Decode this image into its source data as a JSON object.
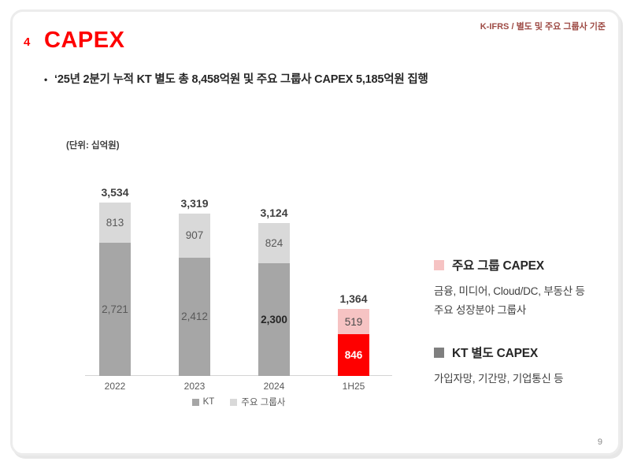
{
  "colors": {
    "accent_red": "#fe0000",
    "note_red": "#9e4b45",
    "kt_gray": "#a6a6a6",
    "group_light_gray": "#d9d9d9",
    "group_pink": "#f6c3c3",
    "panel_kt_marker": "#7f7f7f"
  },
  "header": {
    "section_number": "4",
    "title": "CAPEX",
    "note": "K-IFRS / 별도 및 주요 그룹사 기준"
  },
  "bullet": {
    "marker": "•",
    "text": "‘25년 2분기 누적 KT 별도 총 8,458억원 및 주요 그룹사 CAPEX 5,185억원 집행"
  },
  "unit_label": "(단위: 십억원)",
  "chart_data": {
    "type": "bar",
    "stacked": true,
    "title": "",
    "xlabel": "",
    "ylabel": "",
    "unit": "십억원",
    "grid": false,
    "legend_position": "bottom",
    "categories": [
      "2022",
      "2023",
      "2024",
      "1H25"
    ],
    "series": [
      {
        "name": "KT",
        "values": [
          2721,
          2412,
          2300,
          846
        ],
        "labels": [
          "2,721",
          "2,412",
          "2,300",
          "846"
        ],
        "colors": [
          "#a6a6a6",
          "#a6a6a6",
          "#a6a6a6",
          "#fe0000"
        ],
        "label_colors": [
          "#595959",
          "#595959",
          "#262626",
          "#ffffff"
        ],
        "label_bold": [
          false,
          false,
          true,
          true
        ]
      },
      {
        "name": "주요 그룹사",
        "values": [
          813,
          907,
          824,
          519
        ],
        "labels": [
          "813",
          "907",
          "824",
          "519"
        ],
        "colors": [
          "#d9d9d9",
          "#d9d9d9",
          "#d9d9d9",
          "#f6c3c3"
        ],
        "label_colors": [
          "#595959",
          "#595959",
          "#595959",
          "#4a4a4a"
        ],
        "label_bold": [
          false,
          false,
          false,
          false
        ]
      }
    ],
    "totals": [
      3534,
      3319,
      3124,
      1364
    ],
    "total_labels": [
      "3,534",
      "3,319",
      "3,124",
      "1,364"
    ]
  },
  "chart_legend": [
    {
      "label": "KT",
      "color": "#a6a6a6"
    },
    {
      "label": "주요 그룹사",
      "color": "#d9d9d9"
    }
  ],
  "side_panel": {
    "group": {
      "title": "주요 그룹 CAPEX",
      "marker_color": "#f6c3c3",
      "lines": [
        "금융, 미디어, Cloud/DC, 부동산 등",
        "주요 성장분야 그룹사"
      ]
    },
    "kt": {
      "title": "KT 별도 CAPEX",
      "marker_color": "#7f7f7f",
      "lines": [
        "가입자망, 기간망, 기업통신 등"
      ]
    }
  },
  "page_number": "9"
}
